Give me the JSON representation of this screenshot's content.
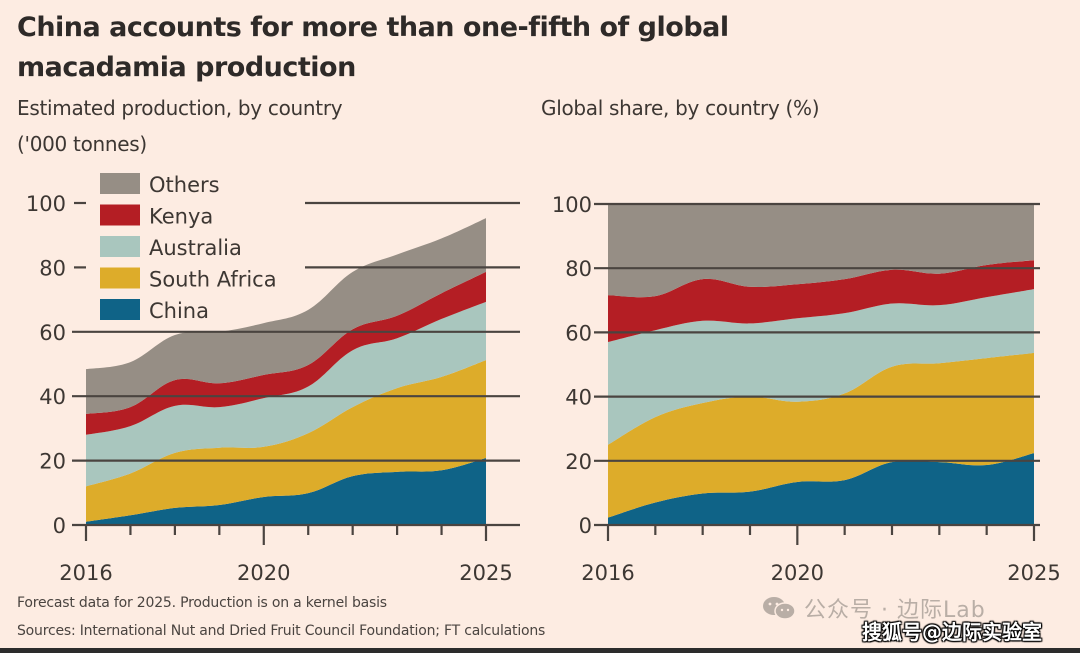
{
  "title": "China accounts for more than one-fifth of global macadamia production",
  "colors": {
    "background": "#fdece2",
    "Others": "#968e85",
    "Kenya": "#b41e24",
    "Australia": "#a9c6be",
    "South Africa": "#ddac2a",
    "China": "#0f6387",
    "axis": "#4a4440"
  },
  "legend": [
    "Others",
    "Kenya",
    "Australia",
    "South Africa",
    "China"
  ],
  "footnotes": {
    "note": "Forecast data for 2025. Production is on a kernel basis",
    "sources": "Sources: International Nut and Dried Fruit Council Foundation; FT calculations"
  },
  "watermarks": {
    "wechat": "公众号 · 边际Lab",
    "sohu": "搜狐号@边际实验室"
  },
  "chart_data": [
    {
      "type": "area",
      "stacked": true,
      "title": "Estimated production, by country",
      "subtitle": "('000 tonnes)",
      "xlabel": "",
      "ylabel": "",
      "x": [
        2016,
        2017,
        2018,
        2019,
        2020,
        2021,
        2022,
        2023,
        2024,
        2025
      ],
      "xticks": [
        2016,
        2020,
        2025
      ],
      "yticks": [
        0,
        20,
        40,
        60,
        80,
        100
      ],
      "ylim": [
        0,
        100
      ],
      "grid": true,
      "legend_position": "top-left",
      "series": [
        {
          "name": "China",
          "values": [
            1,
            3,
            5.3,
            6.2,
            8.7,
            9.9,
            15.2,
            16.5,
            17,
            20.8
          ]
        },
        {
          "name": "South Africa",
          "values": [
            11,
            13,
            17.1,
            17.8,
            15.6,
            18.6,
            21.4,
            26,
            29,
            30.4
          ]
        },
        {
          "name": "Australia",
          "values": [
            16,
            14.7,
            14.6,
            12.6,
            15.1,
            14.5,
            17.7,
            15.5,
            18,
            18.1
          ]
        },
        {
          "name": "Kenya",
          "values": [
            6.5,
            5.9,
            8,
            7.4,
            7.2,
            6.7,
            6.5,
            7,
            8,
            9.3
          ]
        },
        {
          "name": "Others",
          "values": [
            13.9,
            14,
            14,
            16,
            16.1,
            17.1,
            17.8,
            19,
            17,
            16.7
          ]
        }
      ]
    },
    {
      "type": "area",
      "stacked": true,
      "title": "Global share, by country (%)",
      "xlabel": "",
      "ylabel": "",
      "x": [
        2016,
        2017,
        2018,
        2019,
        2020,
        2021,
        2022,
        2023,
        2024,
        2025
      ],
      "xticks": [
        2016,
        2020,
        2025
      ],
      "yticks": [
        0,
        20,
        40,
        60,
        80,
        100
      ],
      "ylim": [
        0,
        100
      ],
      "grid": true,
      "series": [
        {
          "name": "China",
          "values": [
            2.3,
            7,
            9.8,
            10.4,
            13.4,
            14,
            19.6,
            19.6,
            18.7,
            22.4
          ]
        },
        {
          "name": "South Africa",
          "values": [
            22.7,
            26.6,
            28.2,
            29.6,
            25,
            27,
            29.7,
            30.8,
            33.3,
            31.2
          ]
        },
        {
          "name": "Australia",
          "values": [
            32,
            27.1,
            25.6,
            22.8,
            26,
            25,
            19.7,
            18.1,
            19,
            19.9
          ]
        },
        {
          "name": "Kenya",
          "values": [
            14.6,
            10.6,
            13,
            11.4,
            10.6,
            10.6,
            10.5,
            9.8,
            10,
            9
          ]
        },
        {
          "name": "Others",
          "values": [
            28.4,
            28.7,
            23.4,
            25.8,
            25,
            23.4,
            20.5,
            21.7,
            19,
            17.5
          ]
        }
      ]
    }
  ]
}
